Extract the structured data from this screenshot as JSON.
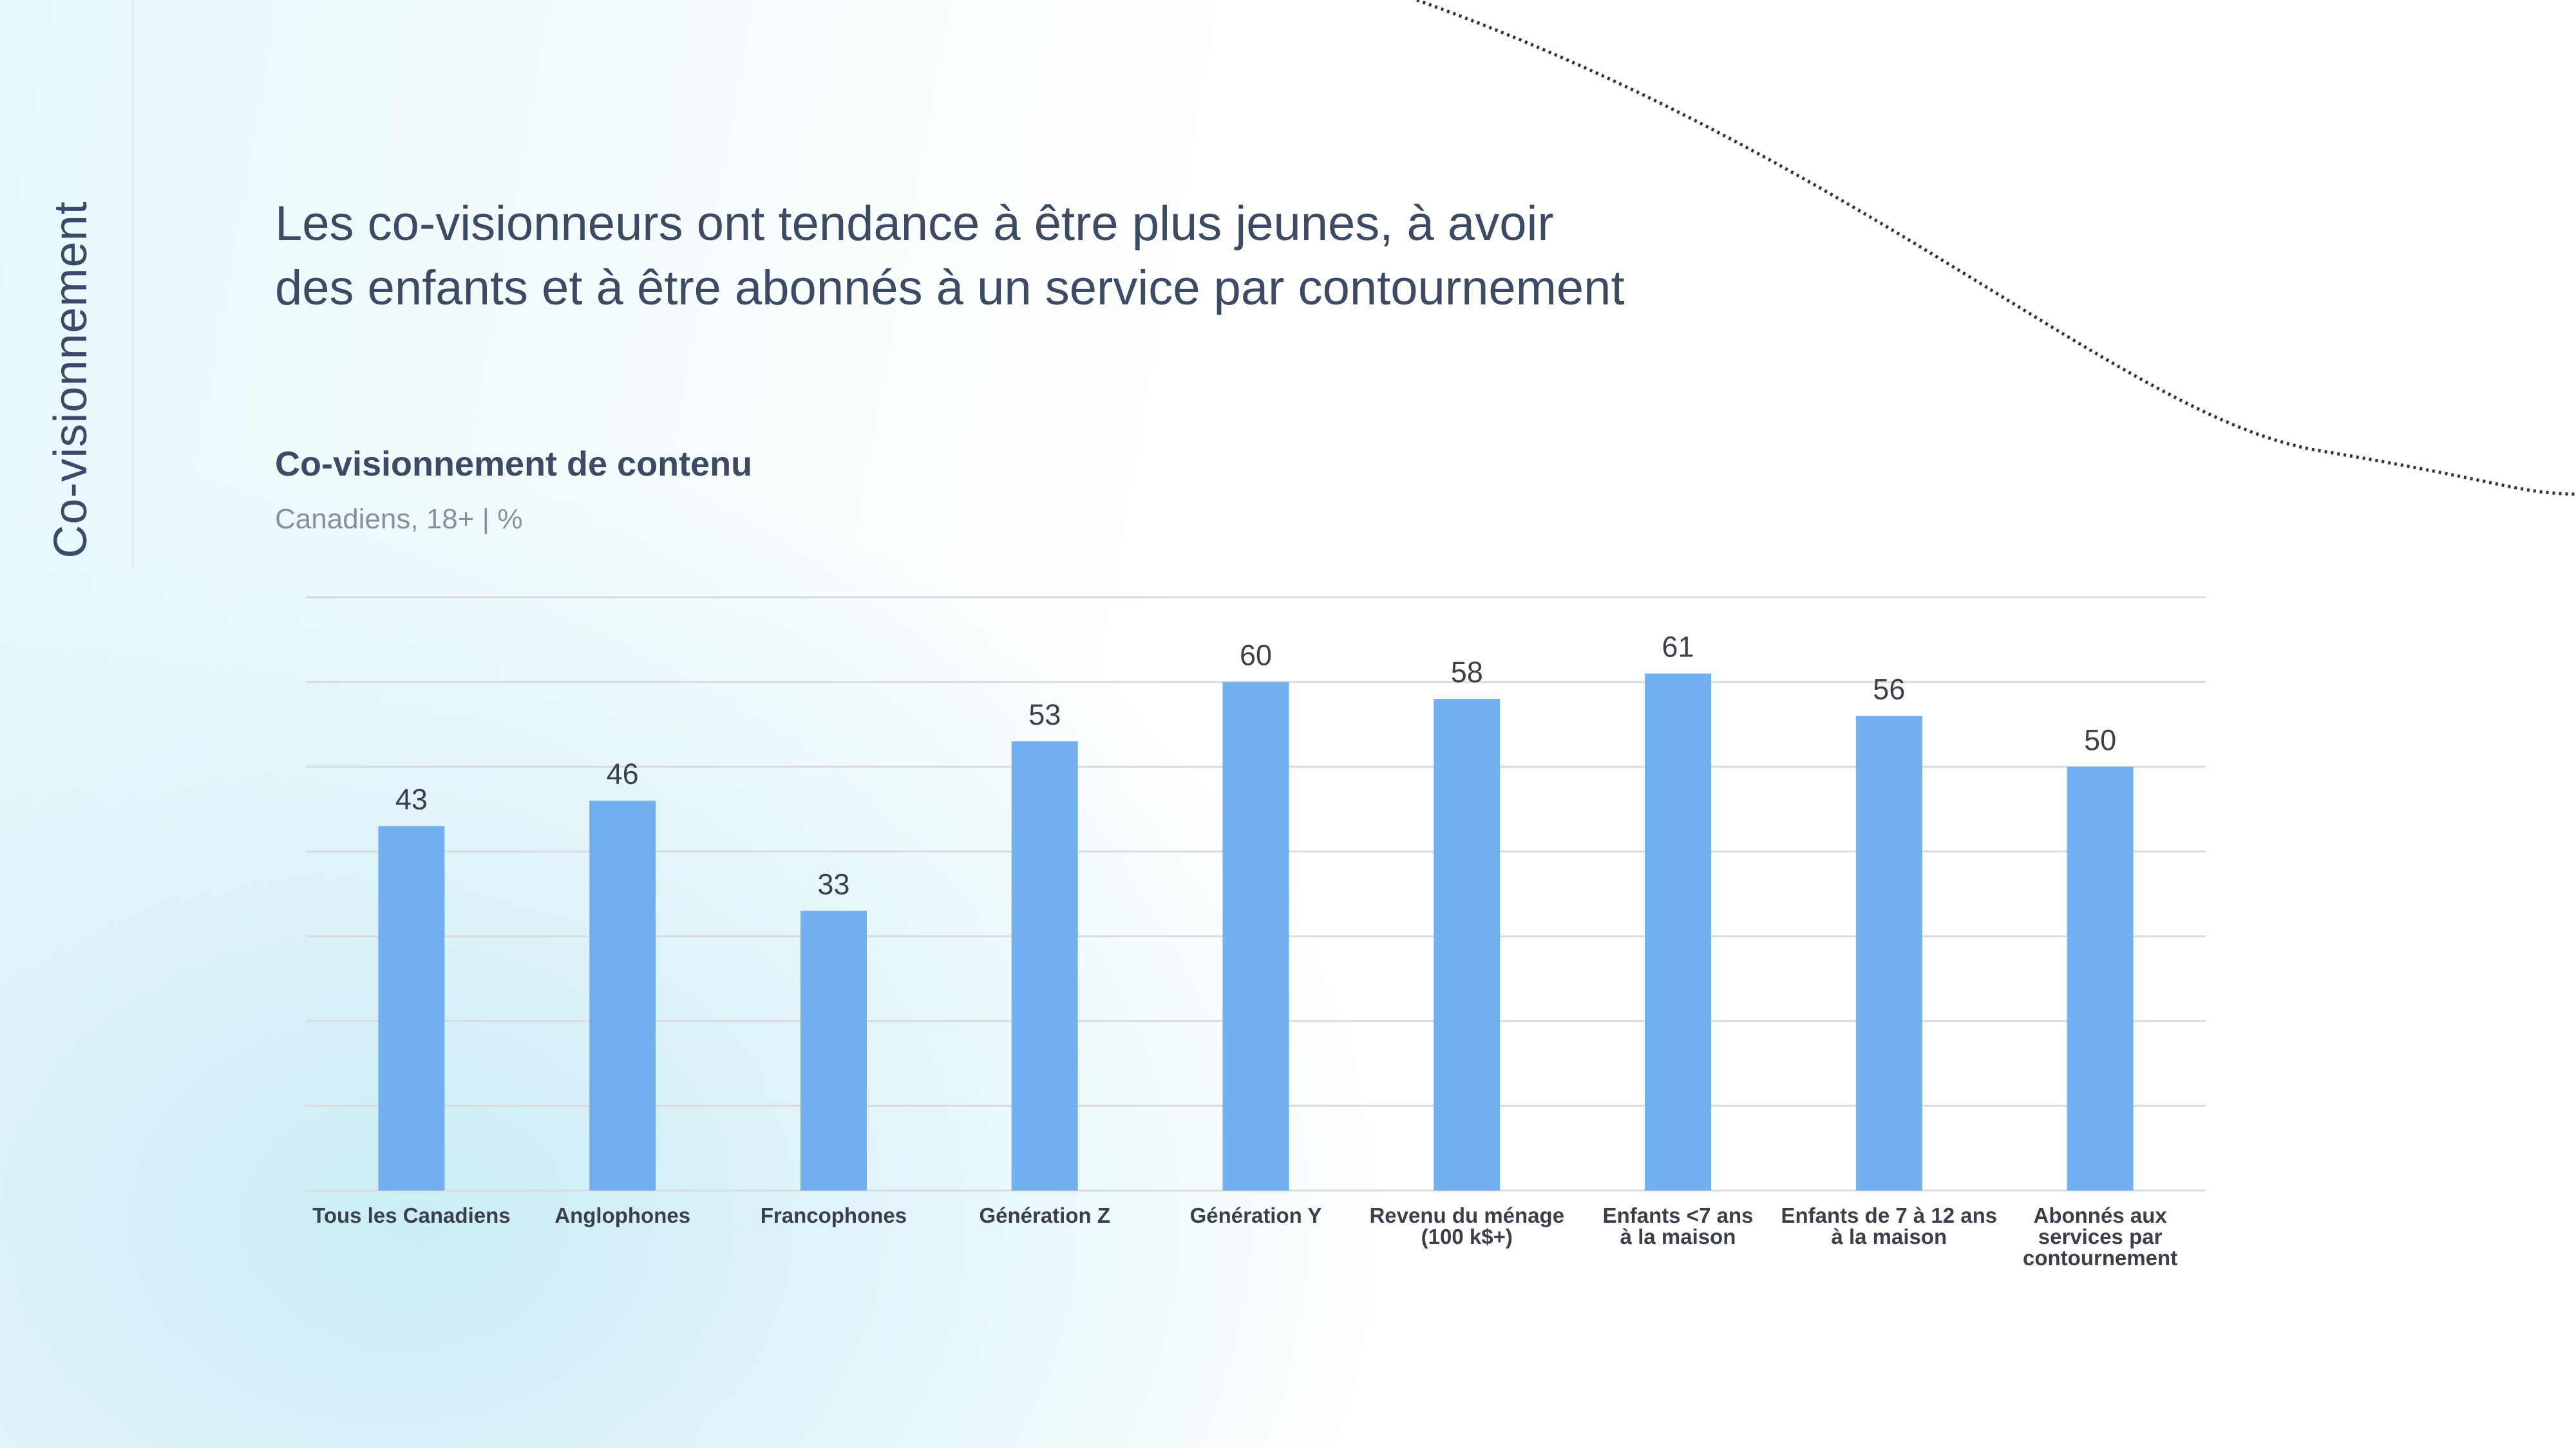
{
  "sidebar": {
    "label": "Co-visionnement"
  },
  "headline": "Les co-visionneurs ont tendance à être plus jeunes, à avoir des enfants et à être abonnés à un service par contournement",
  "colors": {
    "bar": "#72b0ef",
    "gridline": "#d9dcdf",
    "label": "#3a3f4a",
    "curve": "#333333"
  },
  "chart_data": {
    "type": "bar",
    "title": "Co-visionnement de contenu",
    "subtitle": "Canadiens, 18+ | %",
    "categories": [
      "Tous les Canadiens",
      "Anglophones",
      "Francophones",
      "Génération Z",
      "Génération Y",
      "Revenu du ménage\n(100 k$+)",
      "Enfants <7 ans\nà la maison",
      "Enfants de 7 à 12 ans\nà la maison",
      "Abonnés aux\nservices par\ncontournement"
    ],
    "values": [
      43,
      46,
      33,
      53,
      60,
      58,
      61,
      56,
      50
    ],
    "ylim": [
      0,
      70
    ],
    "grid": true,
    "gridline_step": 10,
    "legend": "none",
    "data_labels": true
  }
}
